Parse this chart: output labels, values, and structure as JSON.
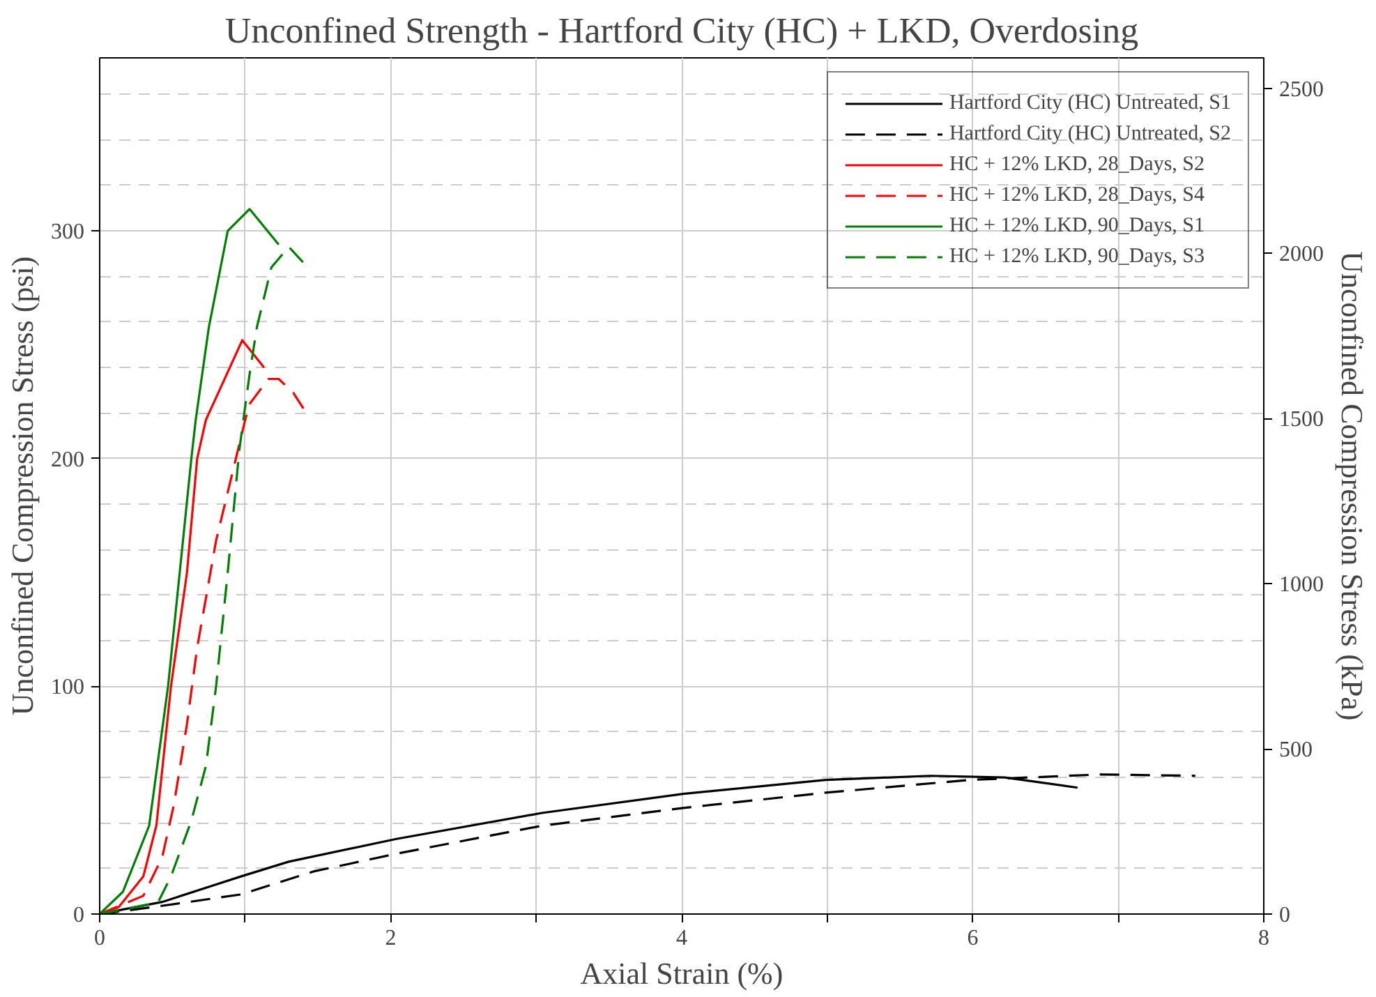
{
  "chart_data": {
    "type": "line",
    "title": "Unconfined Strength - Hartford City (HC) + LKD, Overdosing",
    "xlabel": "Axial Strain (%)",
    "ylabel": "Unconfined Compression Stress (psi)",
    "y2label": "Unconfined Compression Stress (kPa)",
    "xlim": [
      0,
      8
    ],
    "xticks": [
      0,
      {
        "value": 1,
        "label": null
      },
      2,
      {
        "value": 3,
        "label": null
      },
      4,
      {
        "value": 5,
        "label": null
      },
      6,
      {
        "value": 7,
        "label": null
      },
      8
    ],
    "ylim": [
      0,
      376
    ],
    "yticks": [
      0,
      100,
      200,
      300
    ],
    "y2lim": [
      0,
      2592
    ],
    "y2ticks": [
      0,
      500,
      1000,
      1500,
      2000,
      2500
    ],
    "grid": true,
    "legend": "top right",
    "marker": "none",
    "series": [
      {
        "name": "Hartford City (HC) Untreated, S1",
        "color": "#000000",
        "line_style": "solid",
        "x": [
          0,
          0.43,
          0.97,
          1.3,
          2.04,
          3.04,
          4.01,
          4.99,
          5.71,
          6.22,
          6.72
        ],
        "values": [
          0,
          5.3,
          16.5,
          23,
          33,
          44.4,
          52.8,
          58.9,
          60.7,
          60,
          55.5
        ]
      },
      {
        "name": "Hartford City (HC) Untreated, S2",
        "color": "#000000",
        "line_style": "dashed",
        "x": [
          0,
          0.36,
          0.97,
          1.47,
          2.04,
          3.04,
          4.01,
          4.99,
          5.98,
          6.88,
          7.53
        ],
        "values": [
          0,
          3,
          8.6,
          18.7,
          26.5,
          38.8,
          46.6,
          53.3,
          58.9,
          61.3,
          60.7
        ]
      },
      {
        "name": "HC + 12% LKD, 28_Days, S2",
        "color": "#ff0000",
        "line_style": "solid",
        "x": [
          0,
          0.13,
          0.3,
          0.39,
          0.49,
          0.6,
          0.67,
          0.73,
          0.83,
          0.98,
          1.13
        ],
        "values": [
          0,
          3,
          16.5,
          39,
          100,
          150,
          200,
          217,
          231,
          252,
          240
        ]
      },
      {
        "name": "HC + 12% LKD, 28_Days, S4",
        "color": "#ff0000",
        "line_style": "dashed",
        "x": [
          0,
          0.3,
          0.43,
          0.51,
          0.6,
          0.67,
          0.8,
          1.0,
          1.03,
          1.16,
          1.23,
          1.33,
          1.4
        ],
        "values": [
          0,
          8,
          25,
          48,
          83.5,
          117,
          164,
          217,
          224,
          235,
          235,
          229,
          222
        ]
      },
      {
        "name": "HC + 12% LKD, 90_Days, S1",
        "color": "#008000",
        "line_style": "solid",
        "x": [
          0,
          0.16,
          0.34,
          0.47,
          0.63,
          0.66,
          0.75,
          0.88,
          1.03,
          1.23
        ],
        "values": [
          0,
          9.8,
          38.8,
          100,
          200,
          217,
          257.6,
          300,
          309.6,
          294
        ]
      },
      {
        "name": "HC + 12% LKD, 90_Days, S3",
        "color": "#008000",
        "line_style": "dashed",
        "x": [
          0,
          0.4,
          0.49,
          0.63,
          0.73,
          0.8,
          0.88,
          0.96,
          1.03,
          1.08,
          1.18,
          1.3,
          1.43
        ],
        "values": [
          0,
          5,
          16.5,
          41,
          65,
          100,
          150,
          204,
          237,
          257.6,
          284,
          293,
          284
        ]
      }
    ]
  }
}
